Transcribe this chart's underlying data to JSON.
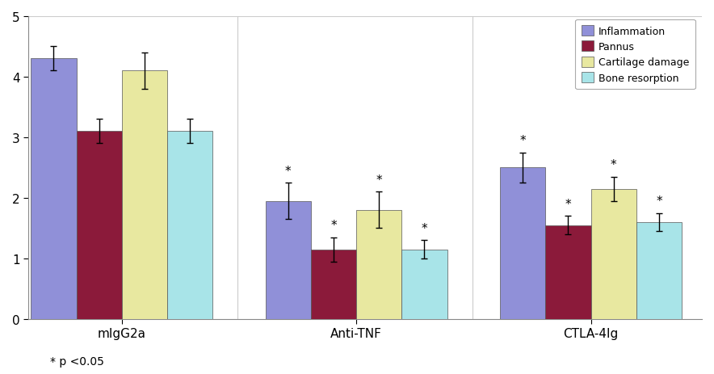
{
  "groups": [
    "mIgG2a",
    "Anti-TNF",
    "CTLA-4Ig"
  ],
  "series": [
    "Inflammation",
    "Pannus",
    "Cartilage damage",
    "Bone resorption"
  ],
  "values": [
    [
      4.3,
      3.1,
      4.1,
      3.1
    ],
    [
      1.95,
      1.15,
      1.8,
      1.15
    ],
    [
      2.5,
      1.55,
      2.15,
      1.6
    ]
  ],
  "errors": [
    [
      0.2,
      0.2,
      0.3,
      0.2
    ],
    [
      0.3,
      0.2,
      0.3,
      0.15
    ],
    [
      0.25,
      0.15,
      0.2,
      0.15
    ]
  ],
  "bar_colors": [
    "#9090d8",
    "#8b1a3a",
    "#e8e8a0",
    "#a8e4e8"
  ],
  "asterisks": [
    [
      false,
      false,
      false,
      false
    ],
    [
      true,
      true,
      true,
      true
    ],
    [
      true,
      true,
      true,
      true
    ]
  ],
  "ylim": [
    0,
    5
  ],
  "yticks": [
    0,
    1,
    2,
    3,
    4,
    5
  ],
  "legend_labels": [
    "Inflammation",
    "Pannus",
    "Cartilage damage",
    "Bone resorption"
  ],
  "footnote": "* p <0.05",
  "bar_width": 0.18,
  "background_color": "#ffffff",
  "plot_bg_color": "#ffffff",
  "edge_color": "#555555"
}
